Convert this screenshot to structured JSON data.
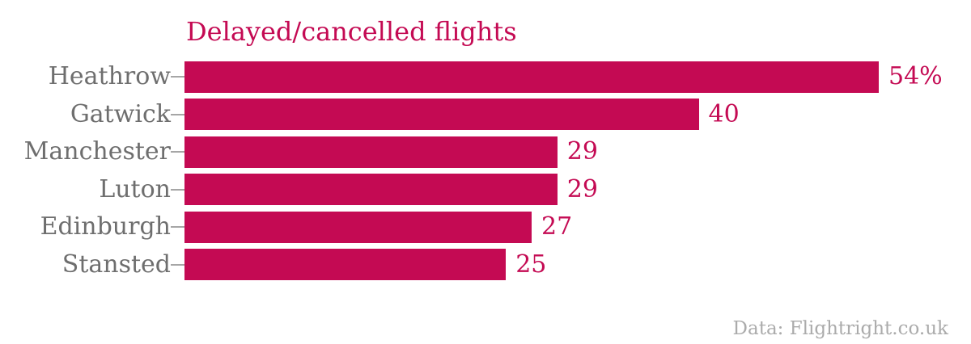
{
  "chart_data": {
    "type": "bar",
    "orientation": "horizontal",
    "title": "Delayed/cancelled flights",
    "categories": [
      "Heathrow",
      "Gatwick",
      "Manchester",
      "Luton",
      "Edinburgh",
      "Stansted"
    ],
    "values": [
      54,
      40,
      29,
      29,
      27,
      25
    ],
    "value_labels": [
      "54%",
      "40",
      "29",
      "29",
      "27",
      "25"
    ],
    "xlabel": "",
    "ylabel": "",
    "xlim": [
      0,
      54
    ],
    "grid": false,
    "legend": "none",
    "source": "Data: Flightright.co.uk",
    "colors": {
      "bar": "#C40A53",
      "title": "#C40A53",
      "value_label": "#C40A53",
      "category_label": "#6E6E6E",
      "tick": "#A6A6A6",
      "source_text": "#ABABAB",
      "background": "#FFFFFF"
    }
  }
}
